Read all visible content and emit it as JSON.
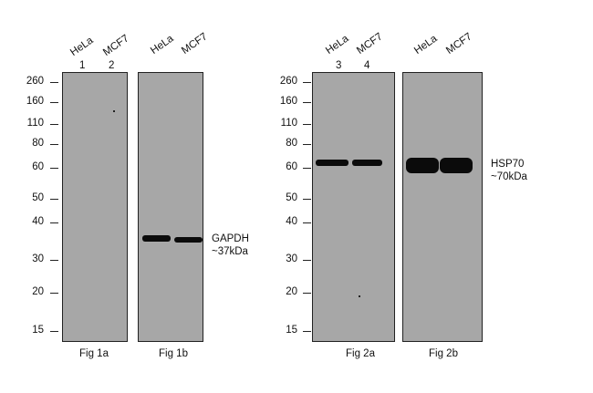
{
  "left_panel": {
    "lane_labels": [
      "HeLa",
      "MCF7",
      "HeLa",
      "MCF7"
    ],
    "lane_numbers": [
      "1",
      "2"
    ],
    "mw_markers": [
      "260",
      "160",
      "110",
      "80",
      "60",
      "50",
      "40",
      "30",
      "20",
      "15"
    ],
    "fig_labels": [
      "Fig 1a",
      "Fig 1b"
    ],
    "band_label_line1": "GAPDH",
    "band_label_line2": "~37kDa"
  },
  "right_panel": {
    "lane_labels": [
      "HeLa",
      "MCF7",
      "HeLa",
      "MCF7"
    ],
    "lane_numbers": [
      "3",
      "4"
    ],
    "mw_markers": [
      "260",
      "160",
      "110",
      "80",
      "60",
      "50",
      "40",
      "30",
      "20",
      "15"
    ],
    "fig_labels": [
      "Fig 2a",
      "Fig 2b"
    ],
    "band_label_line1": "HSP70",
    "band_label_line2": "~70kDa"
  },
  "colors": {
    "membrane": "#a7a7a7",
    "band": "#0b0b0b"
  }
}
